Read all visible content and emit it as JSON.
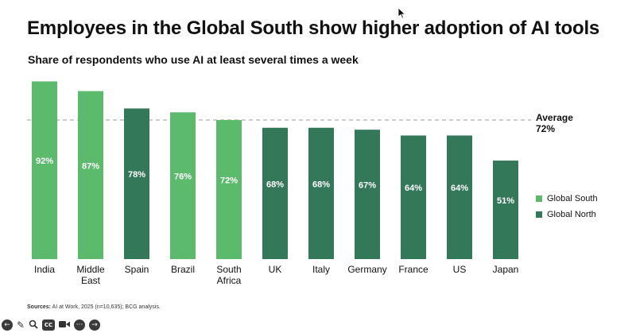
{
  "title": "Employees in the Global South show higher adoption of AI tools",
  "subtitle": "Share of respondents who use AI at least several times a week",
  "average": {
    "label": "Average",
    "value_label": "72%",
    "value": 72
  },
  "legend": [
    {
      "name": "Global South",
      "color": "#5cba6c"
    },
    {
      "name": "Global North",
      "color": "#34785a"
    }
  ],
  "source": {
    "prefix": "Sources:",
    "text": "AI at Work, 2025 (n=10,635); BCG analysis."
  },
  "toolbar": {
    "back_icon": "back-icon",
    "pen_icon": "pen-icon",
    "zoom_icon": "zoom-icon",
    "captions_label": "CC",
    "camera_icon": "camera-icon",
    "more_icon": "more-icon",
    "forward_icon": "forward-icon"
  },
  "chart_data": {
    "type": "bar",
    "title": "Employees in the Global South show higher adoption of AI tools",
    "subtitle": "Share of respondents who use AI at least several times a week",
    "xlabel": "",
    "ylabel": "",
    "ylim": [
      0,
      100
    ],
    "grid": false,
    "legend_position": "right",
    "categories": [
      "India",
      "Middle East",
      "Spain",
      "Brazil",
      "South Africa",
      "UK",
      "Italy",
      "Germany",
      "France",
      "US",
      "Japan"
    ],
    "category_lines": [
      [
        "India"
      ],
      [
        "Middle",
        "East"
      ],
      [
        "Spain"
      ],
      [
        "Brazil"
      ],
      [
        "South",
        "Africa"
      ],
      [
        "UK"
      ],
      [
        "Italy"
      ],
      [
        "Germany"
      ],
      [
        "France"
      ],
      [
        "US"
      ],
      [
        "Japan"
      ]
    ],
    "values": [
      92,
      87,
      78,
      76,
      72,
      68,
      68,
      67,
      64,
      64,
      51
    ],
    "data_labels": [
      "92%",
      "87%",
      "78%",
      "76%",
      "72%",
      "68%",
      "68%",
      "67%",
      "64%",
      "64%",
      "51%"
    ],
    "groups": [
      "Global South",
      "Global South",
      "Global North",
      "Global South",
      "Global South",
      "Global North",
      "Global North",
      "Global North",
      "Global North",
      "Global North",
      "Global North"
    ],
    "reference_line": {
      "label": "Average",
      "value": 72
    }
  }
}
